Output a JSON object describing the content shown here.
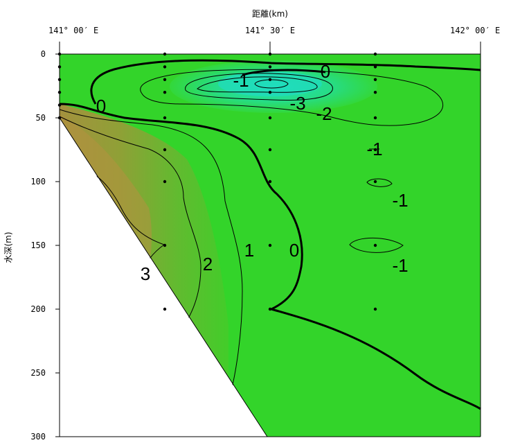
{
  "chart_data": {
    "type": "contour",
    "title": "距離(km)",
    "ylabel": "水深(m)",
    "x_ticks": [
      "141° 00′ E",
      "141° 30′ E",
      "142° 00′ E"
    ],
    "y_ticks": [
      0,
      50,
      100,
      150,
      200,
      250,
      300
    ],
    "ylim": [
      0,
      300
    ],
    "xlim_deg": [
      141.0,
      142.0
    ],
    "stations": [
      {
        "lon": 141.0,
        "depths": [
          0,
          10,
          20,
          30,
          40,
          50
        ]
      },
      {
        "lon": 141.25,
        "depths": [
          0,
          10,
          20,
          30,
          50,
          75,
          100,
          150,
          200
        ]
      },
      {
        "lon": 141.5,
        "depths": [
          0,
          10,
          20,
          30,
          50,
          75,
          100,
          150,
          200
        ]
      },
      {
        "lon": 141.75,
        "depths": [
          0,
          10,
          20,
          30,
          50,
          75,
          100,
          150,
          200
        ]
      }
    ],
    "contour_labels": [
      "0",
      "-1",
      "-3",
      "-2",
      "0",
      "-1",
      "-1",
      "-1",
      "1",
      "0",
      "2",
      "3"
    ],
    "colors": {
      "green": "#33dd22",
      "cold": "#22ddaa",
      "warm": "#a09a3a"
    }
  }
}
